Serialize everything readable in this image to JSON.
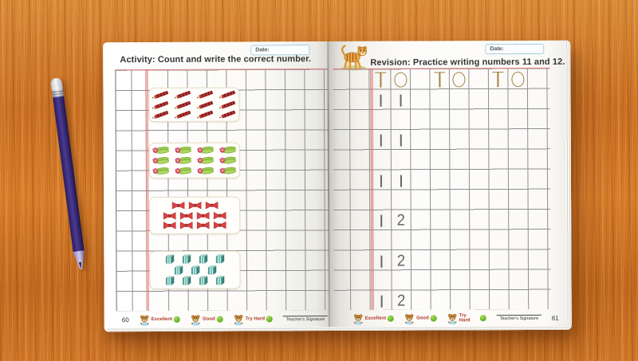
{
  "colors": {
    "wood": "#c9742a",
    "grid_line": "#8f8f8f",
    "margin_line": "#d46a6a",
    "trace_glyph": "#a2813f",
    "practice_digit": "#666666",
    "title_text": "#333333",
    "rating_label_red": "#b3392a",
    "rating_dot_green": "#5fae1f",
    "pencil_body_purple": "#3a2c78",
    "gift_box_teal": "#4fa99e",
    "bow_red": "#d84343",
    "clip_green": "#9ccb4e",
    "pencil_item_red": "#b63434"
  },
  "book": {
    "left_page": {
      "page_number": "60",
      "date_label": "Date:",
      "title": "Activity: Count and write the correct number.",
      "activity_groups": [
        {
          "item": "pencil",
          "count": 12,
          "rows": [
            4,
            4,
            4
          ]
        },
        {
          "item": "hair-clip",
          "count": 12,
          "rows": [
            4,
            4,
            4
          ]
        },
        {
          "item": "bow",
          "count": 11,
          "rows": [
            3,
            4,
            4
          ]
        },
        {
          "item": "gift-box",
          "count": 11,
          "rows": [
            4,
            3,
            4
          ]
        }
      ]
    },
    "right_page": {
      "page_number": "61",
      "date_label": "Date:",
      "title": "Revision: Practice writing numbers 11 and 12.",
      "trace_examples": [
        "10",
        "10",
        "10"
      ],
      "practice_numbers": [
        "11",
        "11",
        "11",
        "12",
        "12",
        "12"
      ]
    },
    "ratings": [
      {
        "label": "Excellent"
      },
      {
        "label": "Good"
      },
      {
        "label": "Try Hard"
      }
    ],
    "signature_label": "Teacher's Signature"
  }
}
